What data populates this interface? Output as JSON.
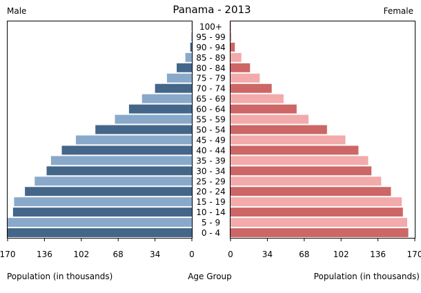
{
  "chart_data": {
    "type": "bar",
    "title": "Panama - 2013",
    "left_label": "Male",
    "right_label": "Female",
    "left_xlabel": "Population (in thousands)",
    "center_label": "Age Group",
    "right_xlabel": "Population (in thousands)",
    "categories": [
      "100+",
      "95 - 99",
      "90 - 94",
      "85 - 89",
      "80 - 84",
      "75 - 79",
      "70 - 74",
      "65 - 69",
      "60 - 64",
      "55 - 59",
      "50 - 54",
      "45 - 49",
      "40 - 44",
      "35 - 39",
      "30 - 34",
      "25 - 29",
      "20 - 24",
      "15 - 19",
      "10 - 14",
      "5 - 9",
      "0 - 4"
    ],
    "xlim": [
      0,
      170
    ],
    "ticks": [
      0,
      34,
      68,
      102,
      136,
      170
    ],
    "tick_labels_left": [
      "170",
      "136",
      "102",
      "68",
      "34",
      "0"
    ],
    "tick_labels_right": [
      "0",
      "34",
      "68",
      "102",
      "136",
      "170"
    ],
    "series": [
      {
        "name": "Male",
        "values": [
          0.2,
          0.5,
          1.5,
          6,
          14,
          23,
          34,
          46,
          58,
          71,
          89,
          107,
          120,
          130,
          134,
          145,
          154,
          164,
          165,
          170,
          170
        ],
        "colors": [
          "#446689",
          "#89a9cb"
        ]
      },
      {
        "name": "Female",
        "values": [
          0.3,
          0.8,
          4,
          10,
          18,
          27,
          38,
          49,
          61,
          72,
          89,
          106,
          118,
          127,
          130,
          139,
          148,
          158,
          159,
          163,
          164
        ],
        "colors": [
          "#cd6666",
          "#f3aaaa"
        ]
      }
    ]
  }
}
